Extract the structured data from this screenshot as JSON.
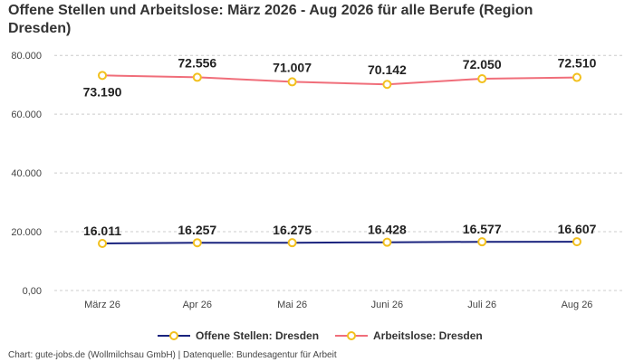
{
  "title": "Offene Stellen und Arbeitslose: März 2026 - Aug 2026 für alle Berufe (Region Dresden)",
  "footer": "Chart: gute-jobs.de (Wollmilchsau GmbH) | Datenquelle: Bundesagentur für Arbeit",
  "colors": {
    "offene": "#1a237e",
    "arbeitslose": "#f06e7a",
    "marker_fill": "#ffffff",
    "marker_stroke": "#f2c01e",
    "grid": "#cccccc"
  },
  "chart_data": {
    "type": "line",
    "title": "Offene Stellen und Arbeitslose: März 2026 - Aug 2026 für alle Berufe (Region Dresden)",
    "categories": [
      "März 26",
      "Apr 26",
      "Mai 26",
      "Juni 26",
      "Juli 26",
      "Aug 26"
    ],
    "y_ticks": [
      "0,00",
      "20.000",
      "40.000",
      "60.000",
      "80.000"
    ],
    "ylim": [
      0,
      85000
    ],
    "grid": true,
    "legend_position": "bottom",
    "series": [
      {
        "name": "Offene Stellen: Dresden",
        "values": [
          16011,
          16257,
          16275,
          16428,
          16577,
          16607
        ],
        "labels": [
          "16.011",
          "16.257",
          "16.275",
          "16.428",
          "16.577",
          "16.607"
        ]
      },
      {
        "name": "Arbeitslose: Dresden",
        "values": [
          73190,
          72556,
          71007,
          70142,
          72050,
          72510
        ],
        "labels": [
          "73.190",
          "72.556",
          "71.007",
          "70.142",
          "72.050",
          "72.510"
        ]
      }
    ]
  }
}
